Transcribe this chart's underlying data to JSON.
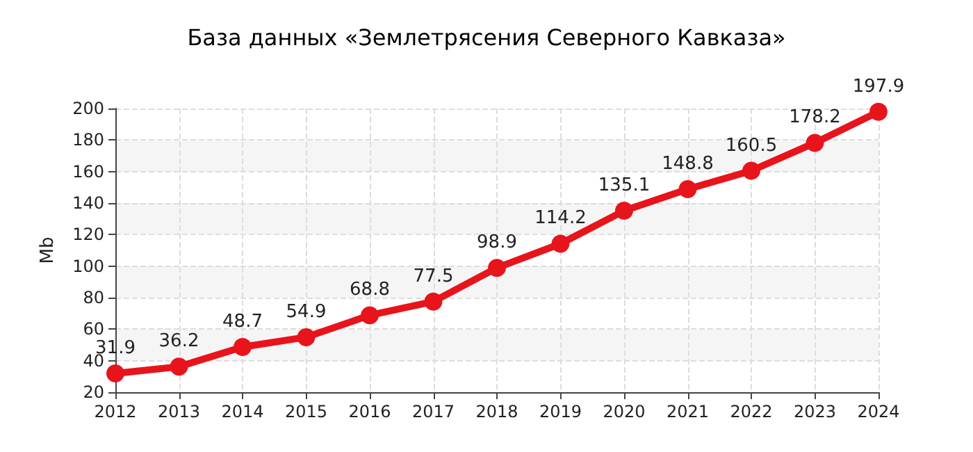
{
  "chart_data": {
    "type": "line",
    "title": "База данных «Землетрясения Северного Кавказа»",
    "ylabel": "Mb",
    "categories": [
      "2012",
      "2013",
      "2014",
      "2015",
      "2016",
      "2017",
      "2018",
      "2019",
      "2020",
      "2021",
      "2022",
      "2023",
      "2024"
    ],
    "series": [
      {
        "color": "#e8141b",
        "values": [
          31.9,
          36.2,
          48.7,
          54.9,
          68.8,
          77.5,
          98.9,
          114.2,
          135.1,
          148.8,
          160.5,
          178.2,
          197.9
        ]
      }
    ],
    "ylim": [
      20,
      200
    ],
    "yticks": [
      20,
      40,
      60,
      80,
      100,
      120,
      140,
      160,
      180,
      200
    ],
    "grid": true,
    "marker": "circle",
    "line_style": "solid",
    "data_labels": true
  }
}
